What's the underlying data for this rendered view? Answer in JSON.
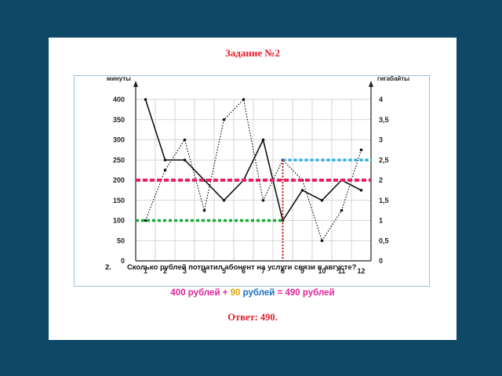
{
  "slide": {
    "title": "Задание №2",
    "question_number": "2.",
    "question": "Сколько рублей потратил абонент на услуги связи в августе?",
    "calc": {
      "part1": "400 рублей",
      "op1": "+",
      "part2_num": "90",
      "part2_unit": "рублей",
      "op2": "=",
      "result": "490 рублей"
    },
    "answer": "Ответ:  490."
  },
  "colors": {
    "background": "#0f4766",
    "title_red": "#e41e2b",
    "magenta": "#e0249a",
    "pink_line": "#e8215e",
    "green_line": "#1aaa3a",
    "cyan_line": "#2ab3e6",
    "dark_red": "#b3121a",
    "blue_text": "#1a6fbf"
  },
  "chart_data": {
    "type": "line",
    "categories": [
      "1",
      "2",
      "3",
      "4",
      "5",
      "6",
      "7",
      "8",
      "9",
      "10",
      "11",
      "12"
    ],
    "y_left": {
      "label": "минуты",
      "ticks": [
        "0",
        "50",
        "100",
        "150",
        "200",
        "250",
        "300",
        "350",
        "400"
      ],
      "range": [
        0,
        400
      ]
    },
    "y_right": {
      "label": "гигабайты",
      "ticks": [
        "0",
        "0,5",
        "1",
        "1,5",
        "2",
        "2,5",
        "3",
        "3,5",
        "4"
      ],
      "range": [
        0,
        4
      ]
    },
    "series": [
      {
        "style": "solid",
        "axis": "left",
        "values": [
          400,
          250,
          250,
          200,
          150,
          200,
          300,
          100,
          175,
          150,
          200,
          175
        ]
      },
      {
        "style": "dotted",
        "axis": "right",
        "values": [
          1,
          2.25,
          3,
          1.25,
          3.5,
          4,
          1.5,
          2.5,
          2,
          0.5,
          1.25,
          2.75
        ]
      }
    ],
    "annotations": {
      "minutes_limit": 200,
      "august_minutes": 100,
      "august_gb": 2.5,
      "highlight_month": "8"
    },
    "grid": true
  }
}
